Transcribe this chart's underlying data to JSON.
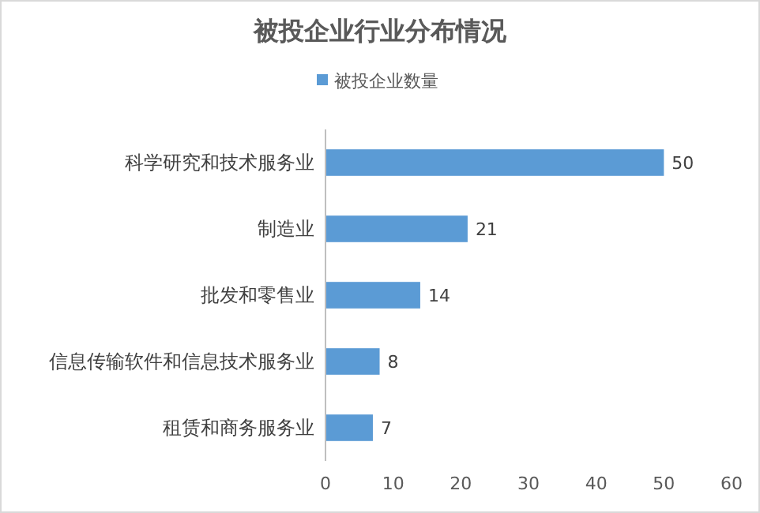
{
  "chart_data": {
    "type": "bar",
    "orientation": "horizontal",
    "title": "被投企业行业分布情况",
    "categories": [
      "科学研究和技术服务业",
      "制造业",
      "批发和零售业",
      "信息传输软件和信息技术服务业",
      "租赁和商务服务业"
    ],
    "series": [
      {
        "name": "被投企业数量",
        "color": "#5b9bd5",
        "values": [
          50,
          21,
          14,
          8,
          7
        ]
      }
    ],
    "xlim": [
      0,
      60
    ],
    "xticks": [
      0,
      10,
      20,
      30,
      40,
      50,
      60
    ],
    "data_labels": true,
    "legend": "top",
    "grid": false
  }
}
